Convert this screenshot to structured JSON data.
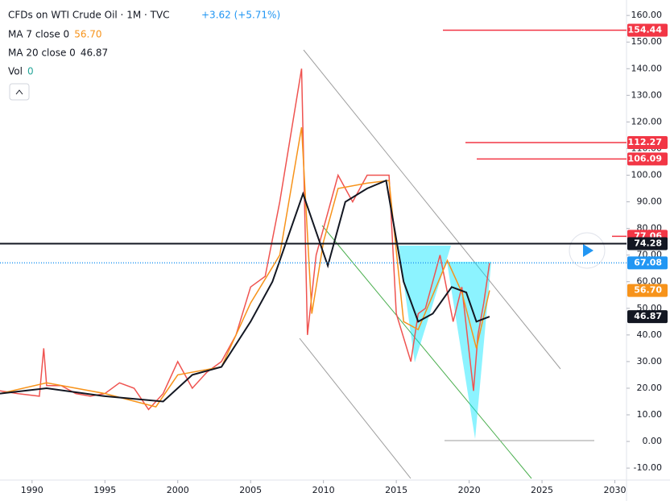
{
  "chart_data": {
    "type": "line",
    "title": "CFDs on WTI Crude Oil · 1M · TVC",
    "change": "+3.62 (+5.71%)",
    "indicators": [
      {
        "label": "MA 7 close 0",
        "value": "56.70",
        "color": "#f7931a"
      },
      {
        "label": "MA 20 close 0",
        "value": "46.87",
        "color": "#131722"
      },
      {
        "label": "Vol",
        "value": "0",
        "color": "#26a69a"
      }
    ],
    "xlim": [
      1987.8,
      2030.8
    ],
    "xticks": [
      1990,
      1995,
      2000,
      2005,
      2010,
      2015,
      2020,
      2025,
      2030
    ],
    "ylim": [
      -14.5,
      165.8
    ],
    "yticks": [
      {
        "value": 160,
        "label": "160.00"
      },
      {
        "value": 150,
        "label": "150.00"
      },
      {
        "value": 140,
        "label": "140.00"
      },
      {
        "value": 130,
        "label": "130.00"
      },
      {
        "value": 120,
        "label": "120.00"
      },
      {
        "value": 110,
        "label": "110.00"
      },
      {
        "value": 100,
        "label": "100.00"
      },
      {
        "value": 90,
        "label": "90.00"
      },
      {
        "value": 80,
        "label": "80.00"
      },
      {
        "value": 70,
        "label": "70.00"
      },
      {
        "value": 60,
        "label": "60.00"
      },
      {
        "value": 50,
        "label": "50.00"
      },
      {
        "value": 40,
        "label": "40.00"
      },
      {
        "value": 30,
        "label": "30.00"
      },
      {
        "value": 20,
        "label": "20.00"
      },
      {
        "value": 10,
        "label": "10.00"
      },
      {
        "value": 0,
        "label": "0.00"
      },
      {
        "value": -10,
        "label": "-10.00"
      }
    ],
    "series": [
      {
        "name": "Price",
        "color": "#ef5350",
        "x": [
          1987.8,
          1989,
          1990.5,
          1990.8,
          1991,
          1992,
          1993,
          1994,
          1995,
          1996,
          1997,
          1998,
          1999,
          2000,
          2001,
          2002,
          2003,
          2004,
          2005,
          2006,
          2007,
          2008.5,
          2008.9,
          2009.5,
          2010,
          2011,
          2012,
          2013,
          2014.5,
          2015,
          2016,
          2016.5,
          2017,
          2018,
          2018.9,
          2019.5,
          2020.3,
          2020.6,
          2021,
          2021.4
        ],
        "values": [
          19,
          18,
          17,
          35,
          21,
          21,
          18,
          17,
          18,
          22,
          20,
          12,
          18,
          30,
          20,
          26,
          30,
          40,
          58,
          62,
          90,
          140,
          40,
          70,
          80,
          100,
          90,
          100,
          100,
          48,
          30,
          48,
          50,
          70,
          45,
          58,
          19,
          40,
          52,
          67
        ]
      },
      {
        "name": "MA 7",
        "color": "#f7931a",
        "x": [
          1987.8,
          1991,
          1995,
          1998.5,
          2000,
          2003,
          2005,
          2007,
          2008.5,
          2009.2,
          2010,
          2011,
          2013,
          2014.5,
          2015.5,
          2016.5,
          2018.5,
          2019.5,
          2020.5,
          2021.4
        ],
        "values": [
          18,
          22,
          18,
          13,
          25,
          28,
          52,
          70,
          118,
          48,
          75,
          95,
          97,
          98,
          45,
          42,
          68,
          56,
          35,
          56.7
        ]
      },
      {
        "name": "MA 20",
        "color": "#131722",
        "x": [
          1987.8,
          1991,
          1995,
          1999,
          2001,
          2003,
          2005,
          2006.5,
          2008.6,
          2010.3,
          2011.5,
          2013,
          2014.3,
          2015.5,
          2016.5,
          2017.5,
          2018.8,
          2019.8,
          2020.5,
          2021.4
        ],
        "values": [
          18,
          20,
          17,
          15,
          25,
          28,
          45,
          60,
          93,
          66,
          90,
          95,
          98,
          60,
          45,
          48,
          58,
          56,
          45,
          46.87
        ]
      }
    ],
    "price_labels": [
      {
        "value": 154.44,
        "label": "154.44",
        "color": "#f23645"
      },
      {
        "value": 112.27,
        "label": "112.27",
        "color": "#f23645"
      },
      {
        "value": 106.09,
        "label": "106.09",
        "color": "#f23645"
      },
      {
        "value": 77.06,
        "label": "77.06",
        "color": "#f23645"
      },
      {
        "value": 74.28,
        "label": "74.28",
        "color": "#131722"
      },
      {
        "value": 67.08,
        "label": "67.08",
        "color": "#2196f3"
      },
      {
        "value": 56.7,
        "label": "56.70",
        "color": "#f7931a"
      },
      {
        "value": 46.87,
        "label": "46.87",
        "color": "#131722"
      }
    ]
  }
}
